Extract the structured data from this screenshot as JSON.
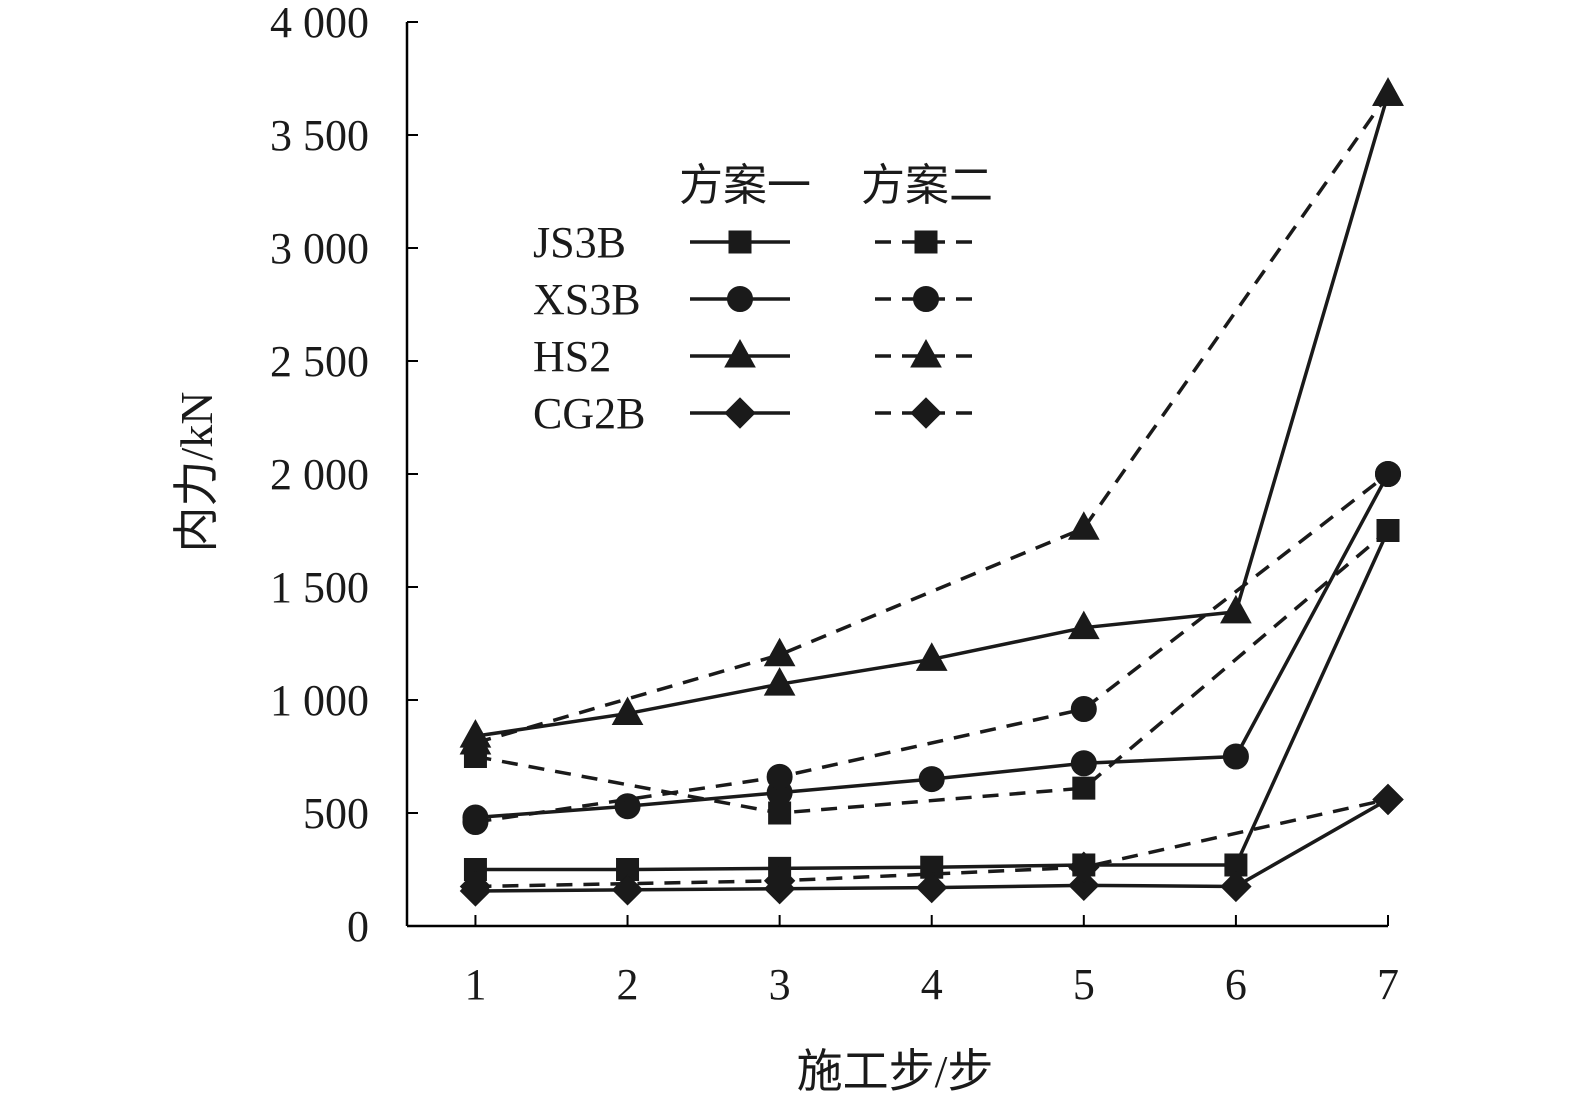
{
  "chart_data": {
    "type": "line",
    "title": "",
    "xlabel": "施工步/步",
    "ylabel": "内力/kN",
    "x": [
      1,
      2,
      3,
      4,
      5,
      6,
      7
    ],
    "xlim": [
      0.55,
      7.0
    ],
    "ylim": [
      0,
      4000
    ],
    "yticks": [
      0,
      500,
      1000,
      1500,
      2000,
      2500,
      3000,
      3500,
      4000
    ],
    "ytick_labels": [
      "0",
      "500",
      "1 000",
      "1 500",
      "2 000",
      "2 500",
      "3 000",
      "3 500",
      "4 000"
    ],
    "xtick_labels": [
      "1",
      "2",
      "3",
      "4",
      "5",
      "6",
      "7"
    ],
    "grid": false,
    "legend_position": "upper-left",
    "legend": {
      "column_headers": [
        "方案一",
        "方案二"
      ],
      "rows": [
        "JS3B",
        "XS3B",
        "HS2",
        "CG2B"
      ]
    },
    "series": [
      {
        "name": "JS3B",
        "scheme": "方案一",
        "marker": "square",
        "dash": "solid",
        "x": [
          1,
          2,
          3,
          4,
          5,
          6,
          7
        ],
        "values": [
          250,
          250,
          255,
          260,
          270,
          270,
          1750
        ]
      },
      {
        "name": "XS3B",
        "scheme": "方案一",
        "marker": "circle",
        "dash": "solid",
        "x": [
          1,
          2,
          3,
          4,
          5,
          6,
          7
        ],
        "values": [
          480,
          530,
          590,
          650,
          720,
          750,
          2000
        ]
      },
      {
        "name": "HS2",
        "scheme": "方案一",
        "marker": "triangle",
        "dash": "solid",
        "x": [
          1,
          2,
          3,
          4,
          5,
          6,
          7
        ],
        "values": [
          840,
          940,
          1070,
          1180,
          1320,
          1390,
          3680
        ]
      },
      {
        "name": "CG2B",
        "scheme": "方案一",
        "marker": "diamond",
        "dash": "solid",
        "x": [
          1,
          2,
          3,
          4,
          5,
          6,
          7
        ],
        "values": [
          155,
          160,
          165,
          170,
          180,
          175,
          560
        ]
      },
      {
        "name": "JS3B",
        "scheme": "方案二",
        "marker": "square",
        "dash": "dashed",
        "x": [
          1,
          3,
          5,
          7
        ],
        "values": [
          750,
          500,
          610,
          1750
        ]
      },
      {
        "name": "XS3B",
        "scheme": "方案二",
        "marker": "circle",
        "dash": "dashed",
        "x": [
          1,
          3,
          5,
          7
        ],
        "values": [
          460,
          660,
          960,
          2000
        ]
      },
      {
        "name": "HS2",
        "scheme": "方案二",
        "marker": "triangle",
        "dash": "dashed",
        "x": [
          1,
          3,
          5,
          7
        ],
        "values": [
          810,
          1200,
          1760,
          3680
        ]
      },
      {
        "name": "CG2B",
        "scheme": "方案二",
        "marker": "diamond",
        "dash": "dashed",
        "x": [
          1,
          3,
          5,
          7
        ],
        "values": [
          175,
          200,
          260,
          560
        ]
      }
    ]
  }
}
